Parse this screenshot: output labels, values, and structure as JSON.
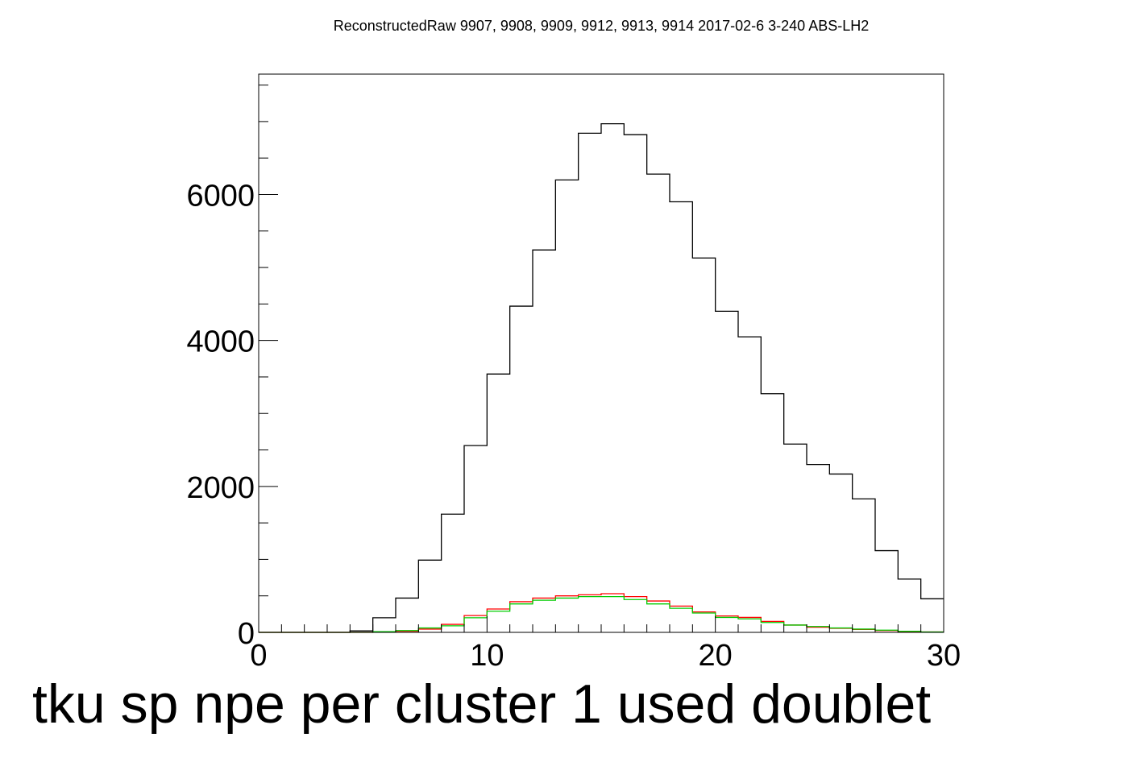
{
  "chart_data": {
    "type": "line",
    "title": "ReconstructedRaw 9907, 9908, 9909, 9912, 9913, 9914 2017-02-6 3-240 ABS-LH2",
    "xlabel": "tku sp npe per cluster 1 used doublet",
    "ylabel": "",
    "xlim": [
      0,
      30
    ],
    "ylim": [
      0,
      7650
    ],
    "x_ticks": [
      "0",
      "10",
      "20",
      "30"
    ],
    "y_ticks": [
      "0",
      "2000",
      "4000",
      "6000"
    ],
    "bin_edges": [
      0,
      1,
      2,
      3,
      4,
      5,
      6,
      7,
      8,
      9,
      10,
      11,
      12,
      13,
      14,
      15,
      16,
      17,
      18,
      19,
      20,
      21,
      22,
      23,
      24,
      25,
      26,
      27,
      28,
      29,
      30
    ],
    "series": [
      {
        "color": "#000000",
        "values": [
          0,
          0,
          0,
          0,
          20,
          200,
          470,
          990,
          1620,
          2560,
          3540,
          4470,
          5240,
          6200,
          6840,
          6970,
          6820,
          6280,
          5900,
          5130,
          4400,
          4050,
          3270,
          2580,
          2300,
          2170,
          1830,
          1120,
          730,
          460
        ]
      },
      {
        "color": "#ff0000",
        "values": [
          0,
          0,
          0,
          0,
          0,
          5,
          15,
          45,
          110,
          230,
          320,
          420,
          470,
          500,
          515,
          530,
          490,
          430,
          360,
          280,
          225,
          205,
          150,
          100,
          70,
          55,
          40,
          25,
          10,
          5
        ]
      },
      {
        "color": "#00cc00",
        "values": [
          0,
          0,
          0,
          0,
          0,
          10,
          25,
          60,
          90,
          200,
          290,
          390,
          440,
          470,
          490,
          490,
          450,
          390,
          330,
          265,
          205,
          185,
          135,
          100,
          80,
          60,
          45,
          30,
          15,
          5
        ]
      }
    ]
  }
}
